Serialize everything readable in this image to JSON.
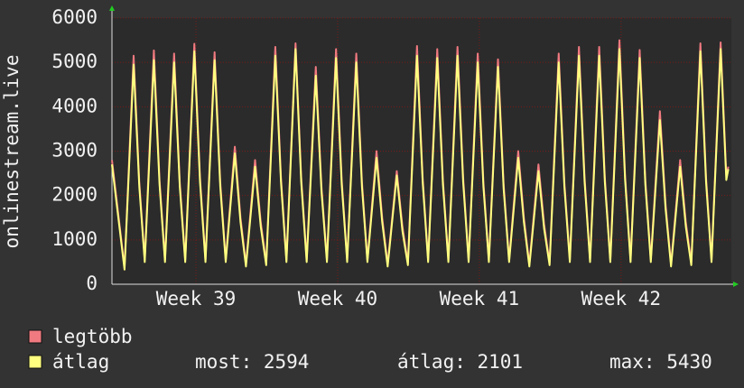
{
  "chart_data": {
    "type": "line",
    "y_label": "onlinestream.live",
    "x": [
      0,
      0.62,
      1.07,
      1.35,
      1.62,
      2.07,
      2.35,
      2.62,
      3.07,
      3.35,
      3.62,
      4.07,
      4.35,
      4.62,
      5.07,
      5.35,
      5.62,
      6.07,
      6.35,
      6.62,
      7.07,
      7.35,
      7.62,
      8.07,
      8.35,
      8.62,
      9.07,
      9.35,
      9.62,
      10.07,
      10.35,
      10.62,
      11.07,
      11.35,
      11.62,
      12.07,
      12.35,
      12.62,
      13.07,
      13.35,
      13.62,
      14.07,
      14.35,
      14.62,
      15.07,
      15.35,
      15.62,
      16.07,
      16.35,
      16.62,
      17.07,
      17.35,
      17.62,
      18.07,
      18.35,
      18.62,
      19.07,
      19.35,
      19.62,
      20.07,
      20.35,
      20.62,
      21.07,
      21.35,
      21.62,
      22.07,
      22.35,
      22.62,
      23.07,
      23.35,
      23.62,
      24.07,
      24.35,
      24.62,
      25.07,
      25.35,
      25.62,
      26.07,
      26.35,
      26.62,
      27.07,
      27.35,
      27.62,
      28.07,
      28.35,
      28.62,
      29.07,
      29.35,
      29.62,
      30.07,
      30.35,
      30.45
    ],
    "series": [
      {
        "name": "legtöbb",
        "color": "#f07a80",
        "values": [
          2800,
          380,
          5150,
          2300,
          550,
          5270,
          2350,
          550,
          5200,
          2300,
          550,
          5420,
          2400,
          550,
          5230,
          2300,
          550,
          3100,
          1500,
          450,
          2800,
          1400,
          480,
          5350,
          2400,
          550,
          5430,
          2400,
          550,
          4900,
          2200,
          550,
          5300,
          2350,
          550,
          5200,
          2300,
          550,
          3000,
          1500,
          450,
          2550,
          1300,
          480,
          5370,
          2400,
          550,
          5300,
          2350,
          550,
          5350,
          2400,
          550,
          5200,
          2300,
          550,
          5070,
          2250,
          550,
          3000,
          1500,
          450,
          2700,
          1350,
          480,
          5200,
          2300,
          550,
          5350,
          2400,
          550,
          5350,
          2400,
          550,
          5500,
          2450,
          550,
          5280,
          2350,
          550,
          3900,
          1800,
          450,
          2800,
          1400,
          480,
          5430,
          2400,
          550,
          5450,
          2450,
          2650
        ]
      },
      {
        "name": "átlag",
        "color": "#ffff80",
        "values": [
          2700,
          330,
          4950,
          2200,
          500,
          5050,
          2250,
          500,
          5000,
          2200,
          500,
          5250,
          2300,
          500,
          5050,
          2200,
          500,
          2950,
          1400,
          400,
          2650,
          1300,
          430,
          5150,
          2300,
          500,
          5300,
          2300,
          500,
          4700,
          2100,
          500,
          5100,
          2250,
          500,
          5000,
          2200,
          500,
          2850,
          1400,
          400,
          2450,
          1200,
          430,
          5150,
          2300,
          500,
          5100,
          2250,
          500,
          5150,
          2300,
          500,
          5000,
          2200,
          500,
          4900,
          2150,
          500,
          2850,
          1400,
          400,
          2550,
          1250,
          430,
          5000,
          2200,
          500,
          5150,
          2300,
          500,
          5150,
          2300,
          500,
          5300,
          2350,
          500,
          5100,
          2250,
          500,
          3700,
          1700,
          400,
          2650,
          1300,
          430,
          5250,
          2300,
          500,
          5300,
          2350,
          2594
        ]
      }
    ],
    "xlim": [
      0,
      30.6
    ],
    "xticks": [
      {
        "value": 4.15,
        "label": "Week 39"
      },
      {
        "value": 11.15,
        "label": "Week 40"
      },
      {
        "value": 18.15,
        "label": "Week 41"
      },
      {
        "value": 25.15,
        "label": "Week 42"
      }
    ],
    "ylim": [
      0,
      6000
    ],
    "yticks": [
      0,
      1000,
      2000,
      3000,
      4000,
      5000,
      6000
    ],
    "grid": true,
    "stats": [
      {
        "label": "most:",
        "value": 2594
      },
      {
        "label": "átlag:",
        "value": 2101
      },
      {
        "label": "max:",
        "value": 5430
      }
    ]
  }
}
